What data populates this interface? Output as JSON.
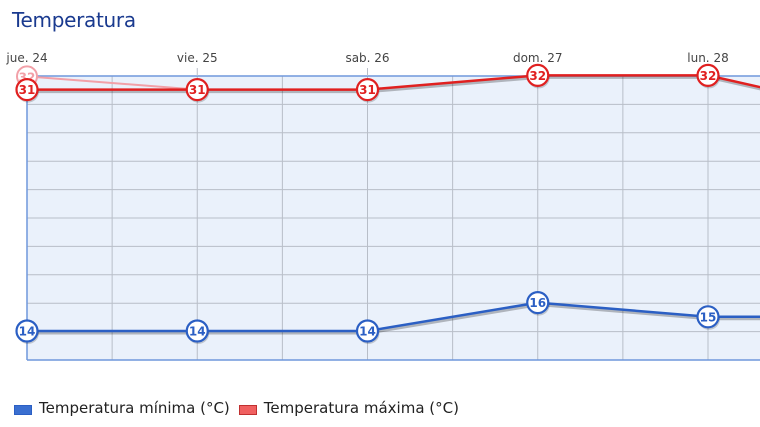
{
  "title": "Temperatura",
  "legend": {
    "min_label": "Temperatura mínima (°C)",
    "max_label": "Temperatura máxima (°C)",
    "min_color": "#3a6fd0",
    "max_color": "#e83c3c"
  },
  "chart_data": {
    "type": "line",
    "title": "Temperatura",
    "categories": [
      "jue. 24",
      "vie. 25",
      "sab. 26",
      "dom. 27",
      "lun. 28"
    ],
    "series": [
      {
        "name": "Temperatura mínima (°C)",
        "color": "#2b5fc4",
        "values": [
          14,
          14,
          14,
          16,
          15
        ]
      },
      {
        "name": "Temperatura máxima (°C)",
        "color": "#e02020",
        "values": [
          31,
          31,
          31,
          32,
          32
        ]
      }
    ],
    "ghost_point": {
      "category": "jue. 24",
      "value": 32,
      "note": "faded previous value"
    },
    "xlabel": "",
    "ylabel": "",
    "grid": true,
    "legend_position": "bottom-left"
  }
}
